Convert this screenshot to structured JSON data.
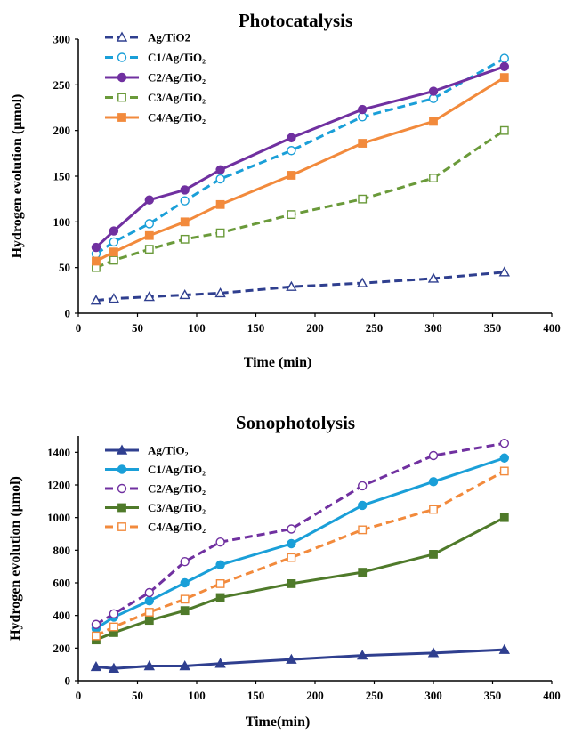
{
  "chart_data": [
    {
      "type": "line",
      "title": "Photocatalysis",
      "xlabel": "Time (min)",
      "ylabel": "Hydrogen evolution (μmol)",
      "xlim": [
        0,
        400
      ],
      "ylim": [
        0,
        300
      ],
      "xticks": [
        0,
        50,
        100,
        150,
        200,
        250,
        300,
        350,
        400
      ],
      "yticks": [
        0,
        50,
        100,
        150,
        200,
        250,
        300
      ],
      "grid": false,
      "legend_position": "top-left",
      "x": [
        15,
        30,
        60,
        90,
        120,
        180,
        240,
        300,
        360
      ],
      "series": [
        {
          "name": "Ag/TiO2",
          "values": [
            14,
            16,
            18,
            20,
            22,
            29,
            33,
            38,
            45
          ],
          "color": "#2f3f8f",
          "dash": "dashed",
          "marker": "triangle-open"
        },
        {
          "name": "C1/Ag/TiO₂",
          "values": [
            65,
            78,
            98,
            123,
            147,
            178,
            215,
            235,
            279
          ],
          "color": "#1a9fd8",
          "dash": "dashed",
          "marker": "circle-open"
        },
        {
          "name": "C2/Ag/TiO₂",
          "values": [
            72,
            90,
            124,
            135,
            157,
            192,
            223,
            243,
            270
          ],
          "color": "#7030a0",
          "dash": "solid",
          "marker": "circle-filled"
        },
        {
          "name": "C3/Ag/TiO₂",
          "values": [
            50,
            58,
            70,
            81,
            88,
            108,
            125,
            148,
            200
          ],
          "color": "#6a9a3a",
          "dash": "dashed",
          "marker": "square-open"
        },
        {
          "name": "C4/Ag/TiO₂",
          "values": [
            57,
            67,
            85,
            100,
            119,
            151,
            186,
            210,
            258
          ],
          "color": "#f28a3c",
          "dash": "solid",
          "marker": "square-filled"
        }
      ]
    },
    {
      "type": "line",
      "title": "Sonophotolysis",
      "xlabel": "Time(min)",
      "ylabel": "Hydrogen evolution (μmol)",
      "xlim": [
        0,
        400
      ],
      "ylim": [
        0,
        1500
      ],
      "xticks": [
        0,
        50,
        100,
        150,
        200,
        250,
        300,
        350,
        400
      ],
      "yticks": [
        0,
        200,
        400,
        600,
        800,
        1000,
        1200,
        1400
      ],
      "grid": false,
      "legend_position": "top-left",
      "x": [
        15,
        30,
        60,
        90,
        120,
        180,
        240,
        300,
        360
      ],
      "series": [
        {
          "name": "Ag/TiO₂",
          "values": [
            85,
            75,
            90,
            90,
            105,
            130,
            155,
            170,
            190
          ],
          "color": "#2f3f8f",
          "dash": "solid",
          "marker": "triangle-filled"
        },
        {
          "name": "C1/Ag/TiO₂",
          "values": [
            320,
            390,
            490,
            600,
            710,
            840,
            1075,
            1220,
            1365
          ],
          "color": "#1a9fd8",
          "dash": "solid",
          "marker": "circle-filled"
        },
        {
          "name": "C2/Ag/TiO₂",
          "values": [
            345,
            410,
            540,
            730,
            850,
            930,
            1195,
            1380,
            1455
          ],
          "color": "#7030a0",
          "dash": "dashed",
          "marker": "circle-open"
        },
        {
          "name": "C3/Ag/TiO₂",
          "values": [
            250,
            295,
            370,
            430,
            510,
            595,
            665,
            775,
            1000
          ],
          "color": "#4f7a2a",
          "dash": "solid",
          "marker": "square-filled"
        },
        {
          "name": "C4/Ag/TiO₂",
          "values": [
            275,
            330,
            420,
            500,
            595,
            755,
            925,
            1050,
            1285
          ],
          "color": "#f28a3c",
          "dash": "dashed",
          "marker": "square-open"
        }
      ]
    }
  ]
}
